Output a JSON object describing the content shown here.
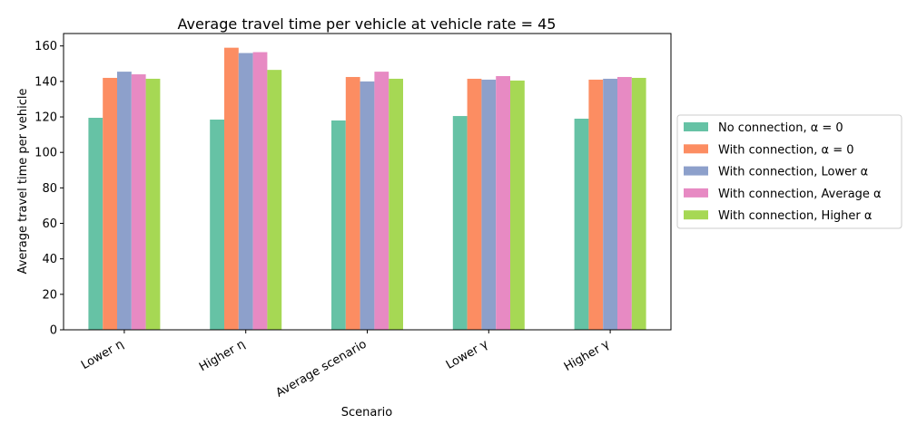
{
  "chart_data": {
    "type": "bar",
    "title": "Average travel time per vehicle at vehicle rate = 45",
    "xlabel": "Scenario",
    "ylabel": "Average travel time per vehicle",
    "categories": [
      "Lower η",
      "Higher η",
      "Average scenario",
      "Lower γ",
      "Higher γ"
    ],
    "ylim": [
      0,
      167
    ],
    "yticks": [
      0,
      20,
      40,
      60,
      80,
      100,
      120,
      140,
      160
    ],
    "grid": false,
    "legend_position": "center-right outside",
    "series": [
      {
        "name": "No connection, α = 0",
        "color": "#66c2a5",
        "values": [
          119.5,
          118.5,
          118,
          120.5,
          119
        ]
      },
      {
        "name": "With connection, α = 0",
        "color": "#fc8d62",
        "values": [
          142,
          159,
          142.5,
          141.5,
          141
        ]
      },
      {
        "name": "With connection, Lower α",
        "color": "#8da0cb",
        "values": [
          145.5,
          156,
          140,
          141,
          141.5
        ]
      },
      {
        "name": "With connection, Average α",
        "color": "#e78ac3",
        "values": [
          144,
          156.5,
          145.5,
          143,
          142.5
        ]
      },
      {
        "name": "With connection, Higher α",
        "color": "#a6d854",
        "values": [
          141.5,
          146.5,
          141.5,
          140.5,
          142
        ]
      }
    ]
  }
}
